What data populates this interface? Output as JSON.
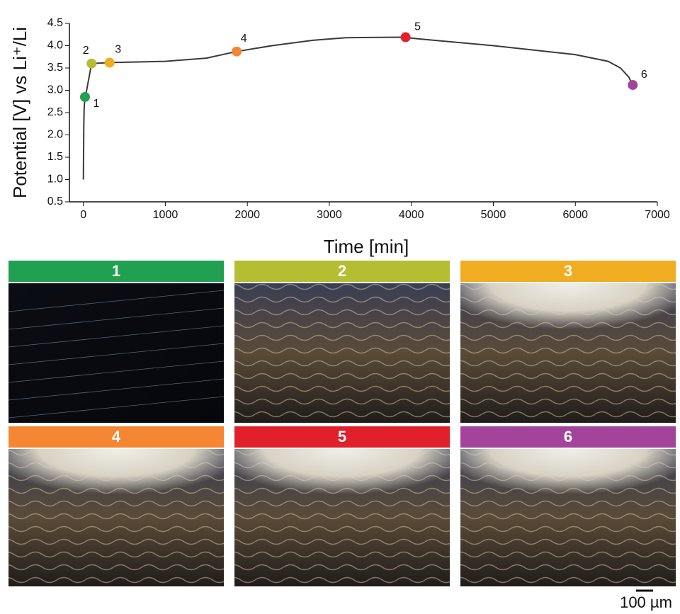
{
  "chart_data": {
    "type": "line",
    "xlabel": "Time [min]",
    "ylabel": "Potential [V] vs Li⁺/Li",
    "xlim": [
      -170,
      7000
    ],
    "xticks": [
      0,
      1000,
      2000,
      3000,
      4000,
      5000,
      6000,
      7000
    ],
    "ylim": [
      0.5,
      4.5
    ],
    "yticks": [
      0.5,
      {
        "value": 1,
        "label": "1.0"
      },
      1.5,
      {
        "value": 2,
        "label": "2.0"
      },
      2.5,
      {
        "value": 3,
        "label": "3.0"
      },
      3.5,
      {
        "value": 4,
        "label": "4.0"
      },
      4.5
    ],
    "series": [
      {
        "color": "#3a3a3a",
        "x": [
          0,
          5,
          10,
          20,
          40,
          70,
          100,
          320,
          1000,
          1500,
          1870,
          2300,
          2800,
          3200,
          3900,
          4100,
          5000,
          6000,
          6400,
          6550,
          6650,
          6700
        ],
        "values": [
          1.0,
          2.2,
          2.6,
          2.85,
          3.0,
          3.3,
          3.6,
          3.62,
          3.65,
          3.72,
          3.87,
          4.0,
          4.12,
          4.18,
          4.19,
          4.15,
          4.0,
          3.8,
          3.65,
          3.5,
          3.3,
          3.12
        ]
      }
    ],
    "markers": [
      {
        "label": "1",
        "x": 20,
        "y": 2.85,
        "color": "#21a052"
      },
      {
        "label": "2",
        "x": 100,
        "y": 3.6,
        "color": "#b5bd33"
      },
      {
        "label": "3",
        "x": 320,
        "y": 3.62,
        "color": "#f0ad22"
      },
      {
        "label": "4",
        "x": 1870,
        "y": 3.87,
        "color": "#f58634"
      },
      {
        "label": "5",
        "x": 3930,
        "y": 4.19,
        "color": "#e0202a"
      },
      {
        "label": "6",
        "x": 6700,
        "y": 3.12,
        "color": "#a2449a"
      }
    ]
  },
  "scale_bar": "100 µm"
}
